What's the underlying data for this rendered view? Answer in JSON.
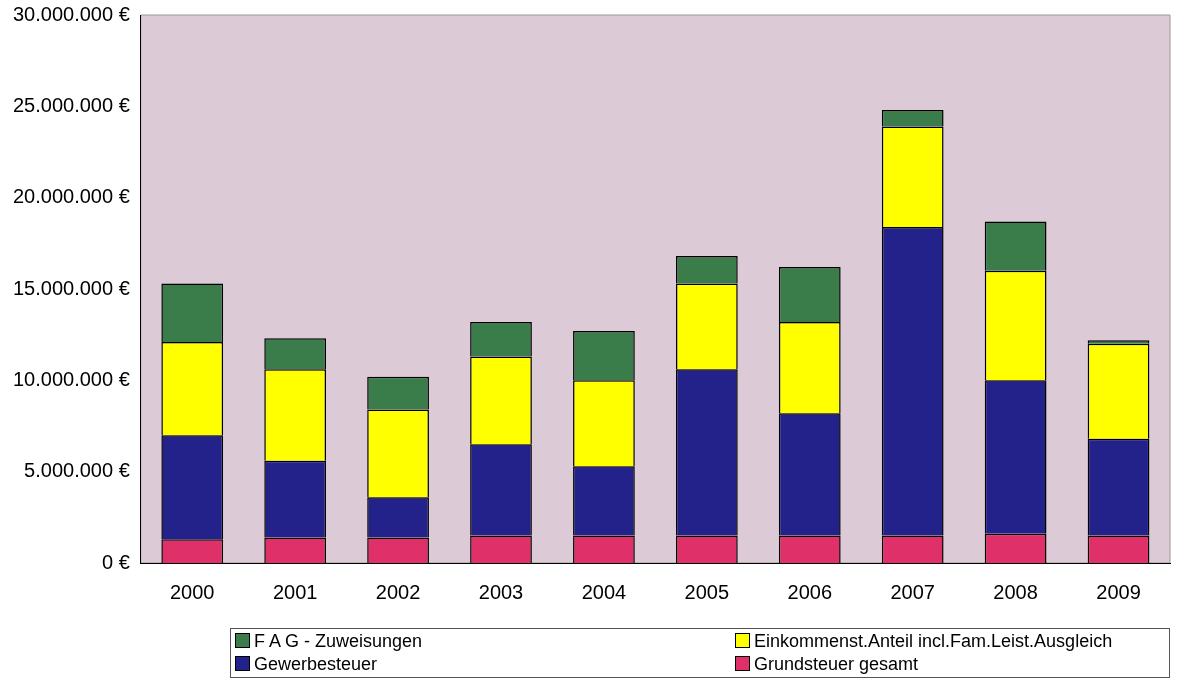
{
  "chart_data": {
    "type": "bar",
    "stacked": true,
    "categories": [
      "2000",
      "2001",
      "2002",
      "2003",
      "2004",
      "2005",
      "2006",
      "2007",
      "2008",
      "2009"
    ],
    "series": [
      {
        "name": "Grundsteuer gesamt",
        "color": "#e0306a",
        "values": [
          1300000,
          1400000,
          1400000,
          1500000,
          1500000,
          1500000,
          1500000,
          1500000,
          1600000,
          1500000
        ]
      },
      {
        "name": "Gewerbesteuer",
        "color": "#22228a",
        "values": [
          5700000,
          4200000,
          2200000,
          5000000,
          3800000,
          9100000,
          6700000,
          16900000,
          8400000,
          5300000
        ]
      },
      {
        "name": "Einkommenst.Anteil incl.Fam.Leist.Ausgleich",
        "color": "#ffff00",
        "values": [
          5100000,
          5000000,
          4800000,
          4800000,
          4700000,
          4700000,
          5000000,
          5500000,
          6000000,
          5200000
        ]
      },
      {
        "name": "F A G  -  Zuweisungen",
        "color": "#3a7d4a",
        "values": [
          3200000,
          1700000,
          1800000,
          1900000,
          2700000,
          1500000,
          3000000,
          900000,
          2700000,
          200000
        ]
      }
    ],
    "ylim": [
      0,
      30000000
    ],
    "yticks": [
      {
        "value": 0,
        "label": "0 €"
      },
      {
        "value": 5000000,
        "label": "5.000.000 €"
      },
      {
        "value": 10000000,
        "label": "10.000.000 €"
      },
      {
        "value": 15000000,
        "label": "15.000.000 €"
      },
      {
        "value": 20000000,
        "label": "20.000.000 €"
      },
      {
        "value": 25000000,
        "label": "25.000.000 €"
      },
      {
        "value": 30000000,
        "label": "30.000.000 €"
      }
    ],
    "grid": false,
    "legend": "bottom"
  }
}
